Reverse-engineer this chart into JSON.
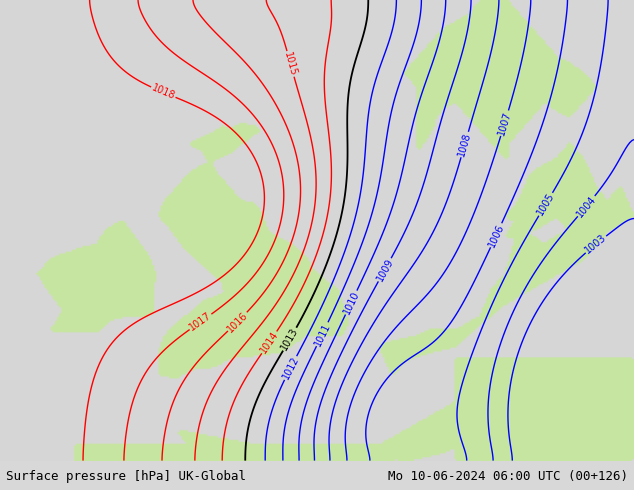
{
  "title_left": "Surface pressure [hPa] UK-Global",
  "title_right": "Mo 10-06-2024 06:00 UTC (00+126)",
  "land_color": [
    0.78,
    0.9,
    0.63,
    1.0
  ],
  "sea_color": [
    0.84,
    0.84,
    0.84,
    1.0
  ],
  "bg_color": "#d8d8d8",
  "red_contour_color": "#ff0000",
  "blue_contour_color": "#0000ff",
  "black_contour_color": "#000000",
  "label_fontsize": 7,
  "title_fontsize": 9,
  "fig_width": 6.34,
  "fig_height": 4.9,
  "dpi": 100,
  "xmin": -12.0,
  "xmax": 13.0,
  "ymin": 47.0,
  "ymax": 63.0,
  "red_levels": [
    1014,
    1015,
    1016,
    1017,
    1018
  ],
  "blue_levels": [
    1003,
    1004,
    1005,
    1006,
    1007,
    1008,
    1009,
    1010,
    1011,
    1012
  ],
  "black_levels": [
    1013
  ]
}
